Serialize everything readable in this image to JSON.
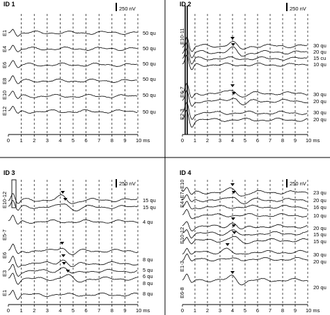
{
  "figure": {
    "background": "#ffffff",
    "trace_color": "#000000",
    "divider_color": "#000000"
  },
  "chart_data": [
    {
      "type": "line",
      "panel": "ID 1",
      "title": "ID 1",
      "scale_bar": "250 nV",
      "x_ticks": [
        "0",
        "1",
        "2",
        "3",
        "4",
        "5",
        "6",
        "7",
        "8",
        "9",
        "10 ms"
      ],
      "x_range": [
        0,
        10
      ],
      "grid": "dashed vertical at 1 ms",
      "electrode_labels": [
        "E1",
        "E4",
        "E6",
        "E8",
        "E10",
        "E12"
      ],
      "series": [
        {
          "name": "E1",
          "label": "50 qu"
        },
        {
          "name": "E4",
          "label": "50 qu"
        },
        {
          "name": "E6",
          "label": "50 qu"
        },
        {
          "name": "E8",
          "label": "50 qu"
        },
        {
          "name": "E10",
          "label": "50 qu"
        },
        {
          "name": "E12",
          "label": "50 qu"
        }
      ]
    },
    {
      "type": "line",
      "panel": "ID 2",
      "title": "ID 2",
      "scale_bar": "250 nV",
      "x_ticks": [
        "0",
        "1",
        "2",
        "3",
        "4",
        "5",
        "6",
        "7",
        "8",
        "9",
        "10 ms"
      ],
      "x_range": [
        0,
        10
      ],
      "grid": "dashed vertical at 1 ms",
      "electrode_labels": [
        "E10-11",
        "E6-7",
        "E2-3"
      ],
      "series": [
        {
          "label": "30 qu"
        },
        {
          "label": "20 qu"
        },
        {
          "label": "15 cu"
        },
        {
          "label": "10 qu"
        },
        {
          "label": "30 qu"
        },
        {
          "label": "20 qu"
        },
        {
          "label": "30 qu"
        },
        {
          "label": "20 qu"
        }
      ]
    },
    {
      "type": "line",
      "panel": "ID 3",
      "title": "ID 3",
      "scale_bar": "250 nV",
      "x_ticks": [
        "0",
        "1",
        "2",
        "3",
        "4",
        "5",
        "6",
        "7",
        "8",
        "9",
        "10 ms"
      ],
      "x_range": [
        0,
        10
      ],
      "grid": "dashed vertical at 1 ms",
      "electrode_labels": [
        "E10-12",
        "E5-7",
        "E6",
        "E3",
        "E1"
      ],
      "series": [
        {
          "label": "15 qu"
        },
        {
          "label": "15 qu"
        },
        {
          "label": "4 qu"
        },
        {
          "label": "8 qu"
        },
        {
          "label": "5 qu"
        },
        {
          "label": "6 qu"
        },
        {
          "label": "8 qu"
        },
        {
          "label": "8 qu"
        }
      ]
    },
    {
      "type": "line",
      "panel": "ID 4",
      "title": "ID 4",
      "scale_bar": "250 nV",
      "x_ticks": [
        "0",
        "1",
        "2",
        "3",
        "4",
        "5",
        "6",
        "7",
        "8",
        "9",
        "10 ms"
      ],
      "x_range": [
        0,
        10
      ],
      "grid": "dashed vertical at 1 ms",
      "electrode_labels": [
        "E4+E7+E10",
        "E10-12",
        "E1-3",
        "E6-8"
      ],
      "series": [
        {
          "label": "23 qu"
        },
        {
          "label": "20 qu"
        },
        {
          "label": "16 qu"
        },
        {
          "label": "10 qu"
        },
        {
          "label": "20 qu"
        },
        {
          "label": "15 qu"
        },
        {
          "label": "15 qu"
        },
        {
          "label": "30 qu"
        },
        {
          "label": "20 qu"
        },
        {
          "label": "20 qu"
        }
      ]
    }
  ]
}
